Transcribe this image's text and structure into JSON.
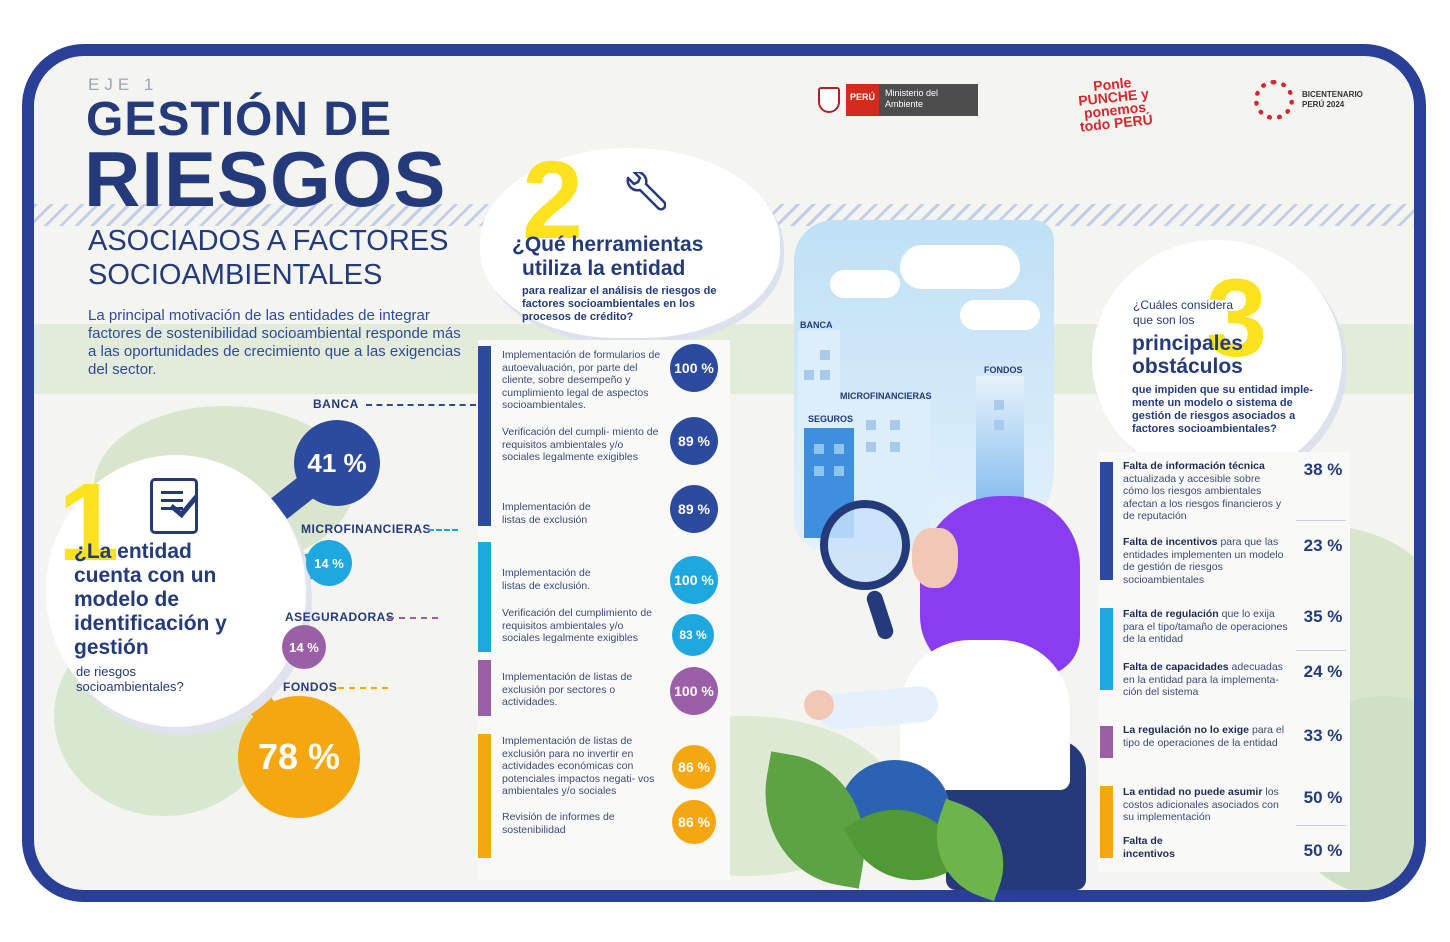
{
  "header": {
    "eje": "EJE 1",
    "title_line1": "GESTIÓN DE",
    "title_line2": "RIESGOS",
    "subtitle": "ASOCIADOS A FACTORES SOCIOAMBIENTALES",
    "intro": "La principal motivación de las entidades de integrar factores de sostenibilidad socioambiental responde más a las oportunidades de crecimiento que a las exigencias del sector."
  },
  "logos": {
    "peru_red": "PERÚ",
    "ministerio": "Ministerio del Ambiente",
    "ponle": "Ponle PUNCHE y ponemos todo PERÚ",
    "bicentenario": "BICENTENARIO PERÚ 2024"
  },
  "section1": {
    "number": "1",
    "question": "¿La entidad cuenta con un modelo de identificación y gestión",
    "question_sub": "de riesgos socioambientales?",
    "segments": [
      {
        "label": "BANCA",
        "value": "41 %",
        "color": "#2c4a9e"
      },
      {
        "label": "MICROFINANCIERAS",
        "value": "14 %",
        "color": "#1fa8e0"
      },
      {
        "label": "ASEGURADORAS",
        "value": "14 %",
        "color": "#9b5fa8"
      },
      {
        "label": "FONDOS",
        "value": "78 %",
        "color": "#f4a70e"
      }
    ]
  },
  "section2": {
    "number": "2",
    "question_line1": "¿Qué herramientas",
    "question_line2": "utiliza la entidad",
    "question_sub": "para realizar el análisis de riesgos de factores socioambientales en los procesos de crédito?",
    "groups": [
      {
        "color": "#2c4a9e",
        "items": [
          {
            "text": "Implementación de formularios de autoevaluación, por parte del cliente, sobre desempeño y cumplimiento legal de aspectos socioambientales.",
            "value": "100 %"
          },
          {
            "text": "Verificación del cumpli- miento de requisitos ambientales y/o sociales legalmente exigibles",
            "value": "89 %"
          },
          {
            "text": "Implementación de listas de exclusión",
            "value": "89 %"
          }
        ]
      },
      {
        "color": "#1fa8e0",
        "items": [
          {
            "text": "Implementación de listas de exclusión.",
            "value": "100 %"
          },
          {
            "text": "Verificación del cumplimiento de requisitos ambientales y/o sociales legalmente exigibles",
            "value": "83 %"
          }
        ]
      },
      {
        "color": "#9b5fa8",
        "items": [
          {
            "text": "Implementación de listas de exclusión por sectores o actividades.",
            "value": "100 %"
          }
        ]
      },
      {
        "color": "#f4a70e",
        "items": [
          {
            "text": "Implementación de listas de exclusión para no invertir en actividades económicas con potenciales impactos negati- vos ambientales y/o sociales",
            "value": "86 %"
          },
          {
            "text": "Revisión de informes de sostenibilidad",
            "value": "86 %"
          }
        ]
      }
    ]
  },
  "illustration": {
    "labels": [
      "BANCA",
      "MICROFINANCIERAS",
      "SEGUROS",
      "FONDOS"
    ]
  },
  "section3": {
    "number": "3",
    "question_a": "¿Cuáles considera que son los",
    "question_b": "principales obstáculos",
    "question_c": "que impiden que su entidad imple- mente un modelo o sistema de gestión de riesgos asociados a factores socioambientales?",
    "items": [
      {
        "bold": "Falta de información técnica",
        "rest": " actualizada y accesible sobre cómo los riesgos ambientales afectan a los riesgos financieros y de reputación",
        "value": "38 %"
      },
      {
        "bold": "Falta de incentivos",
        "rest": " para que las entidades implementen un modelo de gestión de riesgos socioambientales",
        "value": "23 %"
      },
      {
        "bold": "Falta de regulación",
        "rest": " que lo exija para el tipo/tamaño de operaciones de la entidad",
        "value": "35 %"
      },
      {
        "bold": "Falta de capacidades",
        "rest": " adecuadas en la entidad para la implementa- ción del sistema",
        "value": "24 %"
      },
      {
        "bold": "La regulación no lo exige",
        "rest": " para el tipo de operaciones de la entidad",
        "value": "33 %"
      },
      {
        "bold": "La entidad no puede asumir",
        "rest": " los costos adicionales asociados con su implementación",
        "value": "50 %"
      },
      {
        "bold": "Falta de incentivos",
        "rest": "",
        "value": "50 %"
      }
    ]
  }
}
